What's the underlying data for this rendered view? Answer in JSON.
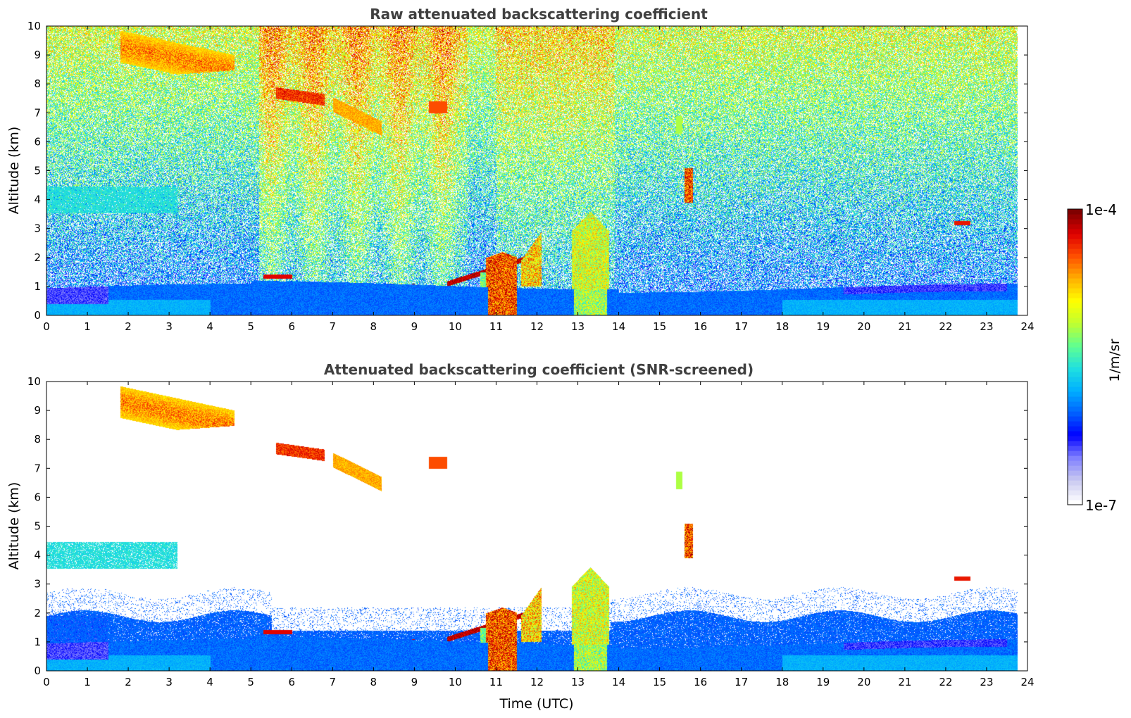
{
  "chart_data": [
    {
      "type": "heatmap",
      "title": "Raw attenuated backscattering coefficient",
      "xlabel": "",
      "ylabel": "Altitude (km)",
      "xlim": [
        0,
        24
      ],
      "ylim": [
        0,
        10
      ],
      "xticks": [
        0,
        1,
        2,
        3,
        4,
        5,
        6,
        7,
        8,
        9,
        10,
        11,
        12,
        13,
        14,
        15,
        16,
        17,
        18,
        19,
        20,
        21,
        22,
        23,
        24
      ],
      "yticks": [
        0,
        1,
        2,
        3,
        4,
        5,
        6,
        7,
        8,
        9,
        10
      ],
      "data_extent_x": [
        0,
        23.75
      ],
      "screened": false,
      "features": [
        {
          "kind": "boundary_layer",
          "x": [
            0,
            23.75
          ],
          "top_km": 1.2,
          "level": "low"
        },
        {
          "kind": "aerosol_layer",
          "x": [
            0,
            3.2
          ],
          "y": [
            3.3,
            4.4
          ],
          "level": "low-mid"
        },
        {
          "kind": "cirrus",
          "x": [
            1.8,
            4.6
          ],
          "y": [
            8.2,
            10
          ],
          "level": "high"
        },
        {
          "kind": "cirrus",
          "x": [
            5.6,
            8.2
          ],
          "y": [
            6.2,
            8.0
          ],
          "level": "high"
        },
        {
          "kind": "cirrus",
          "x": [
            9.3,
            9.8
          ],
          "y": [
            7.0,
            7.5
          ],
          "level": "high"
        },
        {
          "kind": "convective_cloud",
          "x": [
            10.8,
            11.5
          ],
          "y": [
            0,
            2.2
          ],
          "level": "max"
        },
        {
          "kind": "convective_cloud",
          "x": [
            12.8,
            13.7
          ],
          "y": [
            0,
            3.5
          ],
          "level": "mid"
        },
        {
          "kind": "cloud",
          "x": [
            15.55,
            15.8
          ],
          "y": [
            3.9,
            5.1
          ],
          "level": "max"
        },
        {
          "kind": "cloud",
          "x": [
            22.2,
            22.6
          ],
          "y": [
            3.1,
            3.3
          ],
          "level": "high"
        }
      ]
    },
    {
      "type": "heatmap",
      "title": "Attenuated backscattering coefficient (SNR-screened)",
      "xlabel": "Time (UTC)",
      "ylabel": "Altitude (km)",
      "xlim": [
        0,
        24
      ],
      "ylim": [
        0,
        10
      ],
      "xticks": [
        0,
        1,
        2,
        3,
        4,
        5,
        6,
        7,
        8,
        9,
        10,
        11,
        12,
        13,
        14,
        15,
        16,
        17,
        18,
        19,
        20,
        21,
        22,
        23,
        24
      ],
      "yticks": [
        0,
        1,
        2,
        3,
        4,
        5,
        6,
        7,
        8,
        9,
        10
      ],
      "data_extent_x": [
        0,
        23.75
      ],
      "screened": true,
      "features": [
        {
          "kind": "boundary_layer",
          "x": [
            0,
            23.75
          ],
          "top_km": 1.9,
          "level": "low"
        },
        {
          "kind": "aerosol_layer",
          "x": [
            0,
            3.0
          ],
          "y": [
            3.3,
            4.8
          ],
          "level": "low-mid"
        },
        {
          "kind": "cirrus",
          "x": [
            1.8,
            4.6
          ],
          "y": [
            8.2,
            10
          ],
          "level": "high"
        },
        {
          "kind": "cirrus",
          "x": [
            5.6,
            8.2
          ],
          "y": [
            6.2,
            8.0
          ],
          "level": "high"
        },
        {
          "kind": "convective_cloud",
          "x": [
            10.8,
            11.5
          ],
          "y": [
            0,
            2.2
          ],
          "level": "max"
        },
        {
          "kind": "convective_cloud",
          "x": [
            12.8,
            13.7
          ],
          "y": [
            0,
            3.5
          ],
          "level": "mid"
        },
        {
          "kind": "cloud",
          "x": [
            15.55,
            15.8
          ],
          "y": [
            3.9,
            5.1
          ],
          "level": "max"
        }
      ]
    }
  ],
  "colorbar": {
    "label": "1/m/sr",
    "min_label": "1e-7",
    "max_label": "1e-4",
    "colormap": "jet",
    "colors": [
      "#ffffff",
      "#c8c8f0",
      "#8080ff",
      "#0000ff",
      "#0060ff",
      "#00b0ff",
      "#20e0e0",
      "#60ff90",
      "#c0ff30",
      "#ffff00",
      "#ffb000",
      "#ff5000",
      "#e00000",
      "#800000"
    ]
  }
}
